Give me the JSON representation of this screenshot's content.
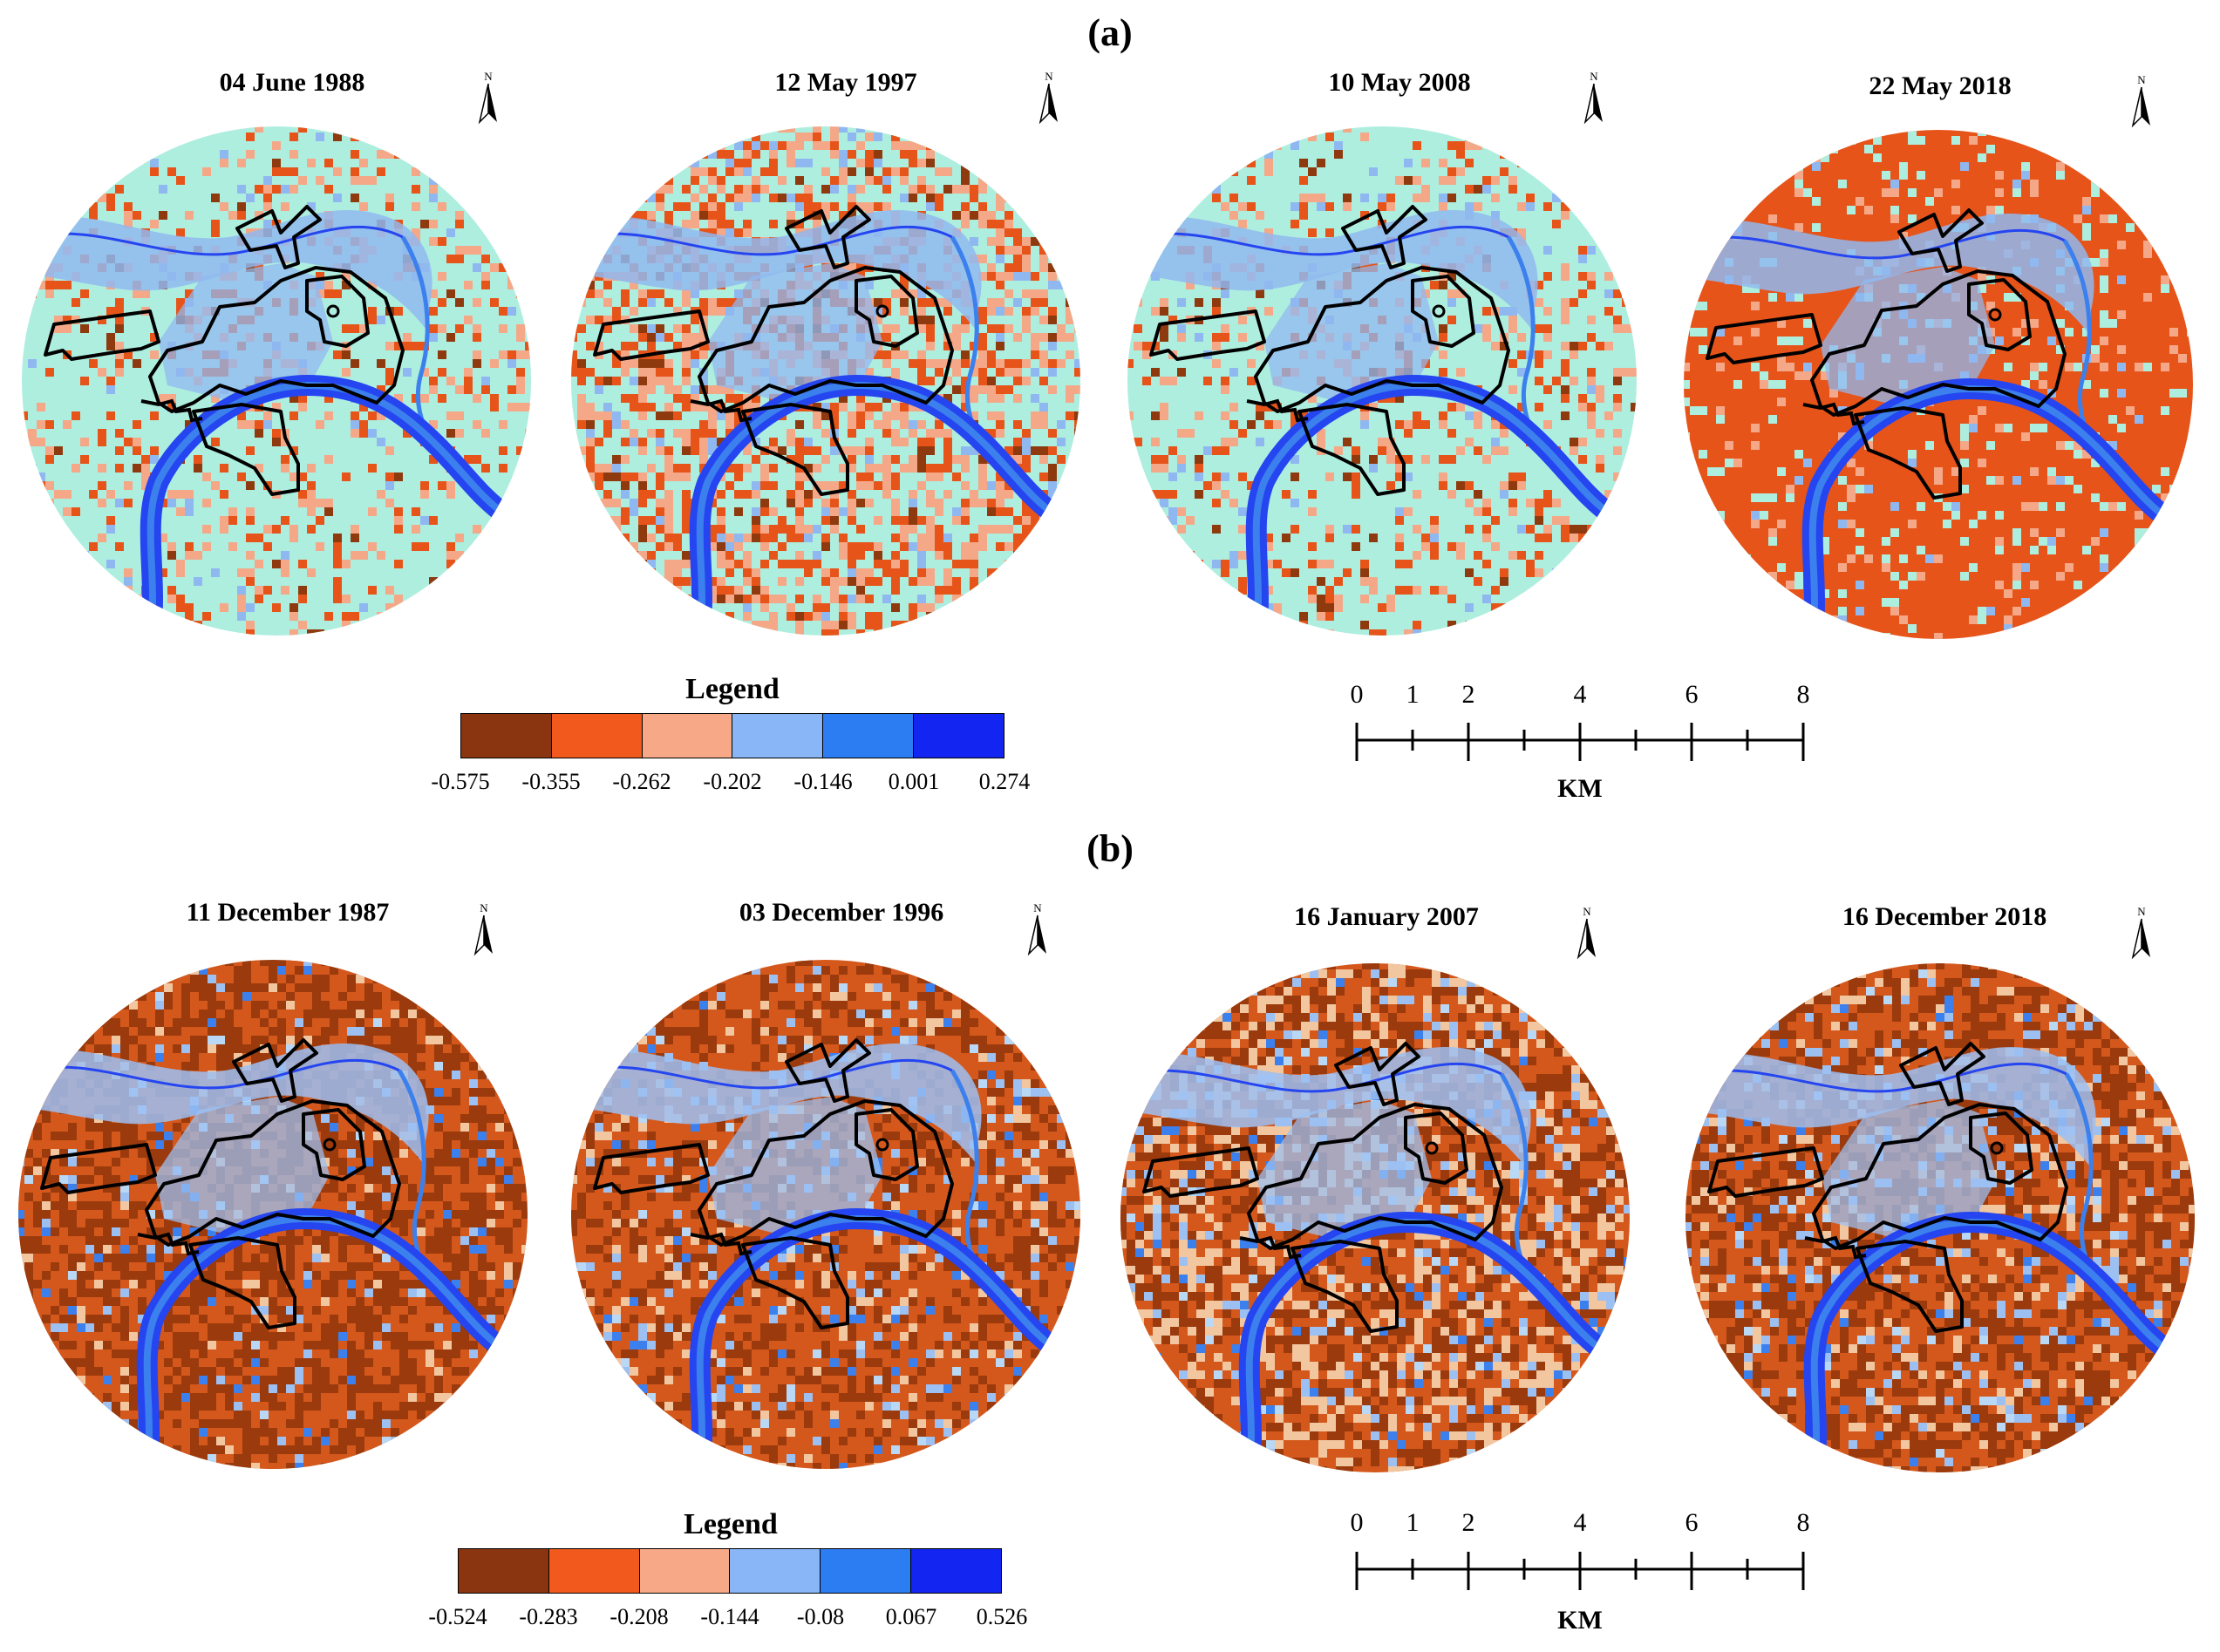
{
  "panels": [
    {
      "label": "(a)",
      "maps": [
        {
          "title": "04 June 1988",
          "palette": [
            "#8f3a0e",
            "#e6541a",
            "#f4a888",
            "#90b8f0",
            "#3b80ec",
            "#2545f0",
            "#aeeedf"
          ],
          "weights": [
            0.02,
            0.1,
            0.1,
            0.02,
            0.0,
            0.0,
            0.76
          ],
          "north": "N"
        },
        {
          "title": "12 May 1997",
          "palette": [
            "#8f3a0e",
            "#e6541a",
            "#f4a888",
            "#90b8f0",
            "#3b80ec",
            "#2545f0",
            "#aeeedf"
          ],
          "weights": [
            0.04,
            0.22,
            0.22,
            0.04,
            0.0,
            0.0,
            0.48
          ],
          "north": "N"
        },
        {
          "title": "10 May 2008",
          "palette": [
            "#8f3a0e",
            "#e6541a",
            "#f4a888",
            "#90b8f0",
            "#3b80ec",
            "#2545f0",
            "#aeeedf"
          ],
          "weights": [
            0.02,
            0.1,
            0.1,
            0.03,
            0.0,
            0.0,
            0.75
          ],
          "north": "N"
        },
        {
          "title": "22 May 2018",
          "palette": [
            "#8f3a0e",
            "#e6541a",
            "#f4a888",
            "#90b8f0",
            "#3b80ec",
            "#2545f0",
            "#aeeedf"
          ],
          "weights": [
            0.0,
            0.84,
            0.06,
            0.02,
            0.0,
            0.0,
            0.08
          ],
          "north": "N"
        }
      ],
      "legend": {
        "title": "Legend",
        "colors": [
          "#8b3510",
          "#f15a1c",
          "#f7a987",
          "#88b6f6",
          "#2c7cf2",
          "#1325f0"
        ],
        "ticks": [
          "-0.575",
          "-0.355",
          "-0.262",
          "-0.202",
          "-0.146",
          "0.001",
          "0.274"
        ]
      },
      "scale": {
        "ticks": [
          "0",
          "1",
          "2",
          "4",
          "6",
          "8"
        ],
        "unit": "KM"
      }
    },
    {
      "label": "(b)",
      "maps": [
        {
          "title": "11 December 1987",
          "palette": [
            "#9a3a0d",
            "#d4581c",
            "#f2c7a0",
            "#9cc0f2",
            "#3b80ec",
            "#2545f0",
            "#b8d8f6"
          ],
          "weights": [
            0.46,
            0.44,
            0.04,
            0.03,
            0.02,
            0.0,
            0.01
          ],
          "north": "N"
        },
        {
          "title": "03 December 1996",
          "palette": [
            "#9a3a0d",
            "#d4581c",
            "#f2c7a0",
            "#9cc0f2",
            "#3b80ec",
            "#2545f0",
            "#b8d8f6"
          ],
          "weights": [
            0.28,
            0.56,
            0.06,
            0.05,
            0.03,
            0.0,
            0.02
          ],
          "north": "N"
        },
        {
          "title": "16 January 2007",
          "palette": [
            "#9a3a0d",
            "#d4581c",
            "#f2c7a0",
            "#9cc0f2",
            "#3b80ec",
            "#2545f0",
            "#b8d8f6"
          ],
          "weights": [
            0.3,
            0.38,
            0.22,
            0.06,
            0.02,
            0.0,
            0.02
          ],
          "north": "N"
        },
        {
          "title": "16 December 2018",
          "palette": [
            "#9a3a0d",
            "#d4581c",
            "#f2c7a0",
            "#9cc0f2",
            "#3b80ec",
            "#2545f0",
            "#b8d8f6"
          ],
          "weights": [
            0.36,
            0.46,
            0.08,
            0.06,
            0.02,
            0.0,
            0.02
          ],
          "north": "N"
        }
      ],
      "legend": {
        "title": "Legend",
        "colors": [
          "#8b3510",
          "#f15a1c",
          "#f7a987",
          "#88b6f6",
          "#2c7cf2",
          "#1325f0"
        ],
        "ticks": [
          "-0.524",
          "-0.283",
          "-0.208",
          "-0.144",
          "-0.08",
          "0.067",
          "0.526"
        ]
      },
      "scale": {
        "ticks": [
          "0",
          "1",
          "2",
          "4",
          "6",
          "8"
        ],
        "unit": "KM"
      }
    }
  ]
}
